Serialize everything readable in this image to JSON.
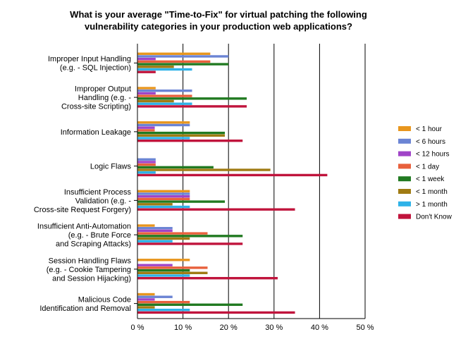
{
  "chart_data": {
    "type": "bar",
    "orientation": "horizontal",
    "title_line1": "What is your average \"Time-to-Fix\" for virtual patching the following",
    "title_line2": "vulnerability categories in your production web applications?",
    "categories": [
      [
        "Improper Input Handling",
        "(e.g. - SQL Injection)"
      ],
      [
        "Improper Output",
        "Handling (e.g. -",
        "Cross-site Scripting)"
      ],
      [
        "Information Leakage"
      ],
      [
        "Logic Flaws"
      ],
      [
        "Insufficient Process",
        "Validation (e.g. -",
        "Cross-site Request Forgery)"
      ],
      [
        "Insufficient Anti-Automation",
        "(e.g. - Brute Force",
        "and Scraping Attacks)"
      ],
      [
        "Session Handling Flaws",
        "(e.g. - Cookie Tampering",
        "and Session Hijacking)"
      ],
      [
        "Malicious Code",
        "Identification and Removal"
      ]
    ],
    "series": [
      {
        "name": "< 1 hour",
        "color": "#e8961e",
        "values": [
          16,
          4,
          11.5,
          0,
          11.5,
          3.8,
          11.5,
          3.8
        ]
      },
      {
        "name": "< 6 hours",
        "color": "#6b84d4",
        "values": [
          20,
          12,
          11.5,
          4,
          11.5,
          7.7,
          0,
          7.7
        ]
      },
      {
        "name": "< 12 hours",
        "color": "#a044c8",
        "values": [
          4,
          4,
          3.8,
          4,
          11.5,
          7.7,
          7.7,
          3.8
        ]
      },
      {
        "name": "< 1 day",
        "color": "#e8603c",
        "values": [
          16,
          12,
          3.8,
          4,
          11.5,
          15.4,
          15.4,
          11.5
        ]
      },
      {
        "name": "< 1 week",
        "color": "#217a21",
        "values": [
          20,
          24,
          19.2,
          16.7,
          19.2,
          23.1,
          11.5,
          23.1
        ]
      },
      {
        "name": "< 1 month",
        "color": "#a07b13",
        "values": [
          8,
          8,
          19.2,
          29.2,
          7.7,
          11.5,
          15.4,
          3.8
        ]
      },
      {
        "name": "> 1 month",
        "color": "#2eb2e8",
        "values": [
          12,
          12,
          11.5,
          4,
          11.5,
          7.7,
          11.5,
          11.5
        ]
      },
      {
        "name": "Don't Know",
        "color": "#c0143c",
        "values": [
          4,
          24,
          23.1,
          41.7,
          34.6,
          23.1,
          30.8,
          34.6
        ]
      }
    ],
    "xlim": [
      0,
      50
    ],
    "xticks": [
      "0 %",
      "10 %",
      "20 %",
      "30 %",
      "40 %",
      "50 %"
    ],
    "grid": true,
    "legend_position": "right"
  }
}
